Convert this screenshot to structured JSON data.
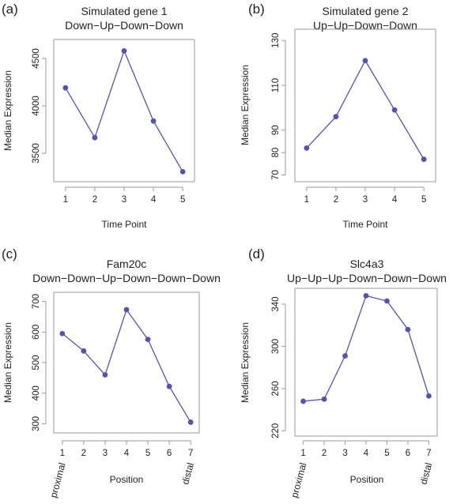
{
  "figure": {
    "panels": [
      {
        "label": "(a)",
        "title_line1": "Simulated gene 1",
        "title_line2": "Down−Up−Down−Down"
      },
      {
        "label": "(b)",
        "title_line1": "Simulated gene 2",
        "title_line2": "Up−Up−Down−Down"
      },
      {
        "label": "(c)",
        "title_line1": "Fam20c",
        "title_line2": "Down−Down−Up−Down−Down−Down"
      },
      {
        "label": "(d)",
        "title_line1": "Slc4a3",
        "title_line2": "Up−Up−Up−Down−Down−Down"
      }
    ],
    "series_color": "#5555a8"
  },
  "chart_data": [
    {
      "type": "line",
      "title": "Simulated gene 1\nDown−Up−Down−Down",
      "xlabel": "Time Point",
      "ylabel": "Median Expression",
      "x": [
        1,
        2,
        3,
        4,
        5
      ],
      "x_tick_labels": [
        "1",
        "2",
        "3",
        "4",
        "5"
      ],
      "values": [
        4190,
        3665,
        4580,
        3840,
        3305
      ],
      "yticks": [
        3500,
        4000,
        4500
      ],
      "ylim": [
        3200,
        4700
      ],
      "xlim": [
        0.6,
        5.4
      ],
      "grid": false
    },
    {
      "type": "line",
      "title": "Simulated gene 2\nUp−Up−Down−Down",
      "xlabel": "Time Point",
      "ylabel": "Median Expression",
      "x": [
        1,
        2,
        3,
        4,
        5
      ],
      "x_tick_labels": [
        "1",
        "2",
        "3",
        "4",
        "5"
      ],
      "values": [
        82,
        96,
        121,
        99,
        77
      ],
      "yticks": [
        70,
        80,
        90,
        110,
        130
      ],
      "ylim": [
        67,
        135
      ],
      "xlim": [
        0.6,
        5.4
      ],
      "grid": false
    },
    {
      "type": "line",
      "title": "Fam20c\nDown−Down−Up−Down−Down−Down",
      "xlabel": "Position",
      "ylabel": "Median Expression",
      "x": [
        1,
        2,
        3,
        4,
        5,
        6,
        7
      ],
      "x_tick_labels": [
        "1",
        "2",
        "3",
        "4",
        "5",
        "6",
        "7"
      ],
      "x_end_labels": [
        "proximal",
        "distal"
      ],
      "values": [
        595,
        538,
        460,
        673,
        576,
        422,
        305
      ],
      "yticks": [
        300,
        400,
        500,
        600,
        700
      ],
      "ylim": [
        270,
        730
      ],
      "xlim": [
        0.6,
        7.4
      ],
      "grid": false
    },
    {
      "type": "line",
      "title": "Slc4a3\nUp−Up−Up−Down−Down−Down",
      "xlabel": "Position",
      "ylabel": "Median Expression",
      "x": [
        1,
        2,
        3,
        4,
        5,
        6,
        7
      ],
      "x_tick_labels": [
        "1",
        "2",
        "3",
        "4",
        "5",
        "6",
        "7"
      ],
      "x_end_labels": [
        "proximal",
        "distal"
      ],
      "values": [
        248,
        250,
        291,
        348,
        343,
        316,
        253
      ],
      "yticks": [
        220,
        260,
        300,
        340
      ],
      "ylim": [
        215,
        355
      ],
      "xlim": [
        0.6,
        7.4
      ],
      "grid": false
    }
  ]
}
